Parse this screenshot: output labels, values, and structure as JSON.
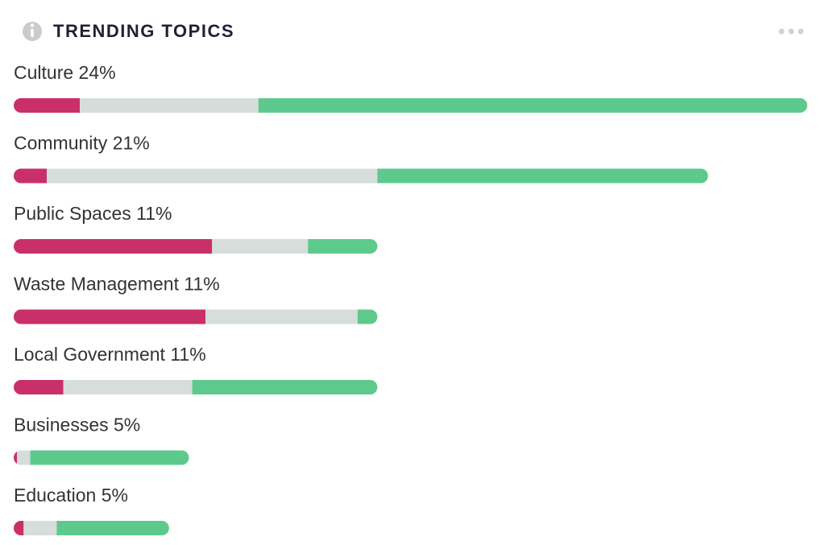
{
  "chart_data": {
    "type": "bar",
    "stacked": true,
    "orientation": "horizontal",
    "title": "TRENDING TOPICS",
    "categories": [
      "Culture 24%",
      "Community 21%",
      "Public Spaces 11%",
      "Waste Management 11%",
      "Local Government 11%",
      "Businesses 5%",
      "Education 5%"
    ],
    "series": [
      {
        "color": "#c9306a",
        "values": [
          2.0,
          1.0,
          6.0,
          5.8,
          1.5,
          0.1,
          0.3
        ]
      },
      {
        "color": "#d6ddda",
        "values": [
          5.4,
          10.0,
          2.9,
          4.6,
          3.9,
          0.4,
          1.0
        ]
      },
      {
        "color": "#5ec98c",
        "values": [
          16.6,
          10.0,
          2.1,
          0.6,
          5.6,
          4.8,
          3.4
        ]
      }
    ]
  }
}
